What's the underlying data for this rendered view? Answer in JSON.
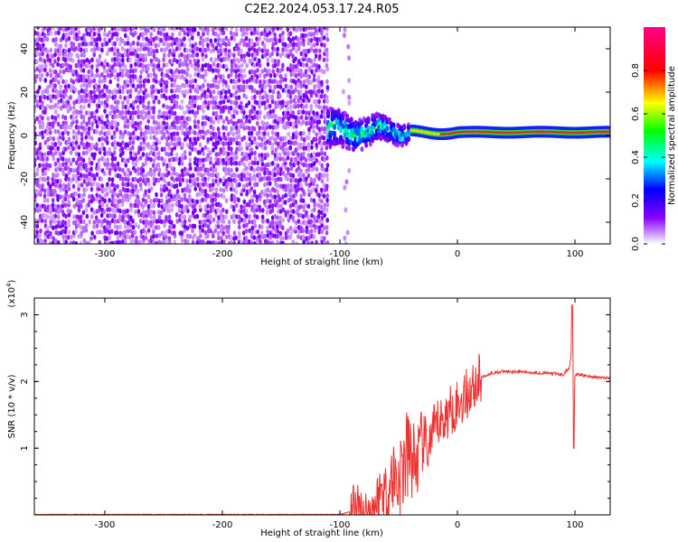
{
  "title": "C2E2.2024.053.17.24.R05",
  "chart_data": [
    {
      "type": "heatmap",
      "xlabel": "Height of straight line (km)",
      "ylabel": "Frequency (Hz)",
      "xlim": [
        -360,
        130
      ],
      "ylim": [
        -50,
        50
      ],
      "xticks": [
        -300,
        -200,
        -100,
        0,
        100
      ],
      "yticks": [
        -40,
        -20,
        0,
        20,
        40
      ],
      "colorbar": {
        "label": "Normalized spectral amplitude",
        "range": [
          0.0,
          1.0
        ],
        "ticks": [
          "0.0",
          "0.2",
          "0.4",
          "0.6",
          "0.8"
        ],
        "tick_values": [
          0.0,
          0.2,
          0.4,
          0.6,
          0.8
        ],
        "colormap": [
          "#ffffff",
          "#8800ff",
          "#0000ff",
          "#00ffff",
          "#00ff00",
          "#ffff00",
          "#ff0000",
          "#ff0088"
        ]
      },
      "regions": [
        {
          "x": [
            -360,
            -110
          ],
          "freq": [
            -50,
            50
          ],
          "amplitude": [
            0.0,
            0.15
          ],
          "description": "noise"
        },
        {
          "x": [
            -110,
            -40
          ],
          "freq": [
            -6,
            8
          ],
          "amplitude": [
            0.2,
            0.45
          ]
        },
        {
          "x": [
            -40,
            130
          ],
          "freq_center": 1.5,
          "freq_halfwidth": 1.5,
          "amplitude": [
            0.85,
            1.0
          ]
        }
      ],
      "grid": false
    },
    {
      "type": "line",
      "xlabel": "Height of straight line (km)",
      "ylabel": "SNR (10 * v/v)",
      "y_multiplier": "(x10^4)",
      "xlim": [
        -360,
        130
      ],
      "ylim": [
        0,
        32500
      ],
      "xticks": [
        -300,
        -200,
        -100,
        0,
        100
      ],
      "yticks": [
        1,
        2,
        3
      ],
      "color": "#ee3030",
      "series": [
        {
          "x": [
            -360,
            -100,
            -90,
            -88,
            -85,
            -80,
            -75,
            -70,
            -65,
            -60,
            -55,
            -50,
            -45,
            -40,
            -35,
            -30,
            -25,
            -20,
            -15,
            -10,
            -5,
            0,
            5,
            10,
            15,
            20,
            25,
            30,
            40,
            50,
            60,
            70,
            80,
            90,
            95,
            97,
            98,
            99,
            100,
            105,
            110,
            120,
            130
          ],
          "values": [
            0,
            0,
            500,
            2000,
            800,
            400,
            300,
            1500,
            4000,
            3000,
            6000,
            5000,
            8000,
            9000,
            7500,
            11000,
            10000,
            12500,
            14000,
            14500,
            16000,
            16500,
            17500,
            18500,
            19500,
            20500,
            21000,
            21300,
            21500,
            21500,
            21400,
            21300,
            21200,
            21000,
            22000,
            24000,
            31000,
            12000,
            21000,
            21000,
            20800,
            20600,
            20500
          ]
        }
      ],
      "grid": false
    }
  ]
}
